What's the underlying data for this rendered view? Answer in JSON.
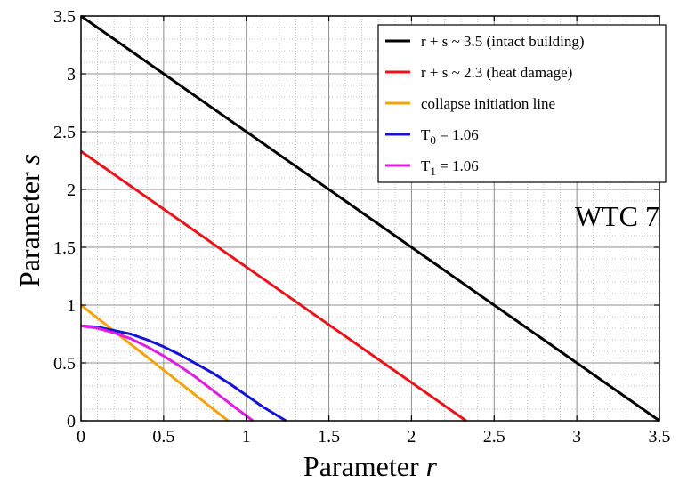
{
  "chart_data": {
    "type": "line",
    "xlabel": "Parameter",
    "xlabel_var": "r",
    "ylabel": "Parameter",
    "ylabel_var": "s",
    "xlim": [
      0,
      3.5
    ],
    "ylim": [
      0,
      3.5
    ],
    "xticks": [
      0,
      0.5,
      1,
      1.5,
      2,
      2.5,
      3,
      3.5
    ],
    "yticks": [
      0,
      0.5,
      1,
      1.5,
      2,
      2.5,
      3,
      3.5
    ],
    "xtick_labels": [
      "0",
      "0.5",
      "1",
      "1.5",
      "2",
      "2.5",
      "3",
      "3.5"
    ],
    "ytick_labels": [
      "0",
      "0.5",
      "1",
      "1.5",
      "2",
      "2.5",
      "3",
      "3.5"
    ],
    "grid": true,
    "legend_position": "top-right",
    "annotation": "WTC 7",
    "series": [
      {
        "name": "r + s ~ 3.5 (intact building)",
        "color": "#000000",
        "x": [
          0,
          3.5
        ],
        "y": [
          3.5,
          0
        ]
      },
      {
        "name": "r + s ~ 2.3 (heat damage)",
        "color": "#e8141c",
        "x": [
          0,
          2.33
        ],
        "y": [
          2.33,
          0
        ]
      },
      {
        "name": "collapse initiation line",
        "color": "#f5a20a",
        "x": [
          0,
          0.89
        ],
        "y": [
          1.0,
          0
        ]
      },
      {
        "name": "T = 1.06",
        "name_base": "T",
        "name_sub": "0",
        "name_rest": " = 1.06",
        "color": "#1414d2",
        "x": [
          0,
          0.1,
          0.2,
          0.3,
          0.4,
          0.5,
          0.6,
          0.7,
          0.8,
          0.9,
          1.0,
          1.1,
          1.24
        ],
        "y": [
          0.82,
          0.81,
          0.78,
          0.75,
          0.7,
          0.64,
          0.57,
          0.49,
          0.41,
          0.32,
          0.22,
          0.12,
          0
        ]
      },
      {
        "name": "T = 1.06",
        "name_base": "T",
        "name_sub": "1",
        "name_rest": " = 1.06",
        "color": "#e01ee0",
        "x": [
          0,
          0.1,
          0.2,
          0.3,
          0.4,
          0.5,
          0.6,
          0.7,
          0.8,
          0.9,
          1.04
        ],
        "y": [
          0.82,
          0.8,
          0.76,
          0.71,
          0.64,
          0.56,
          0.47,
          0.37,
          0.26,
          0.15,
          0
        ]
      }
    ]
  }
}
